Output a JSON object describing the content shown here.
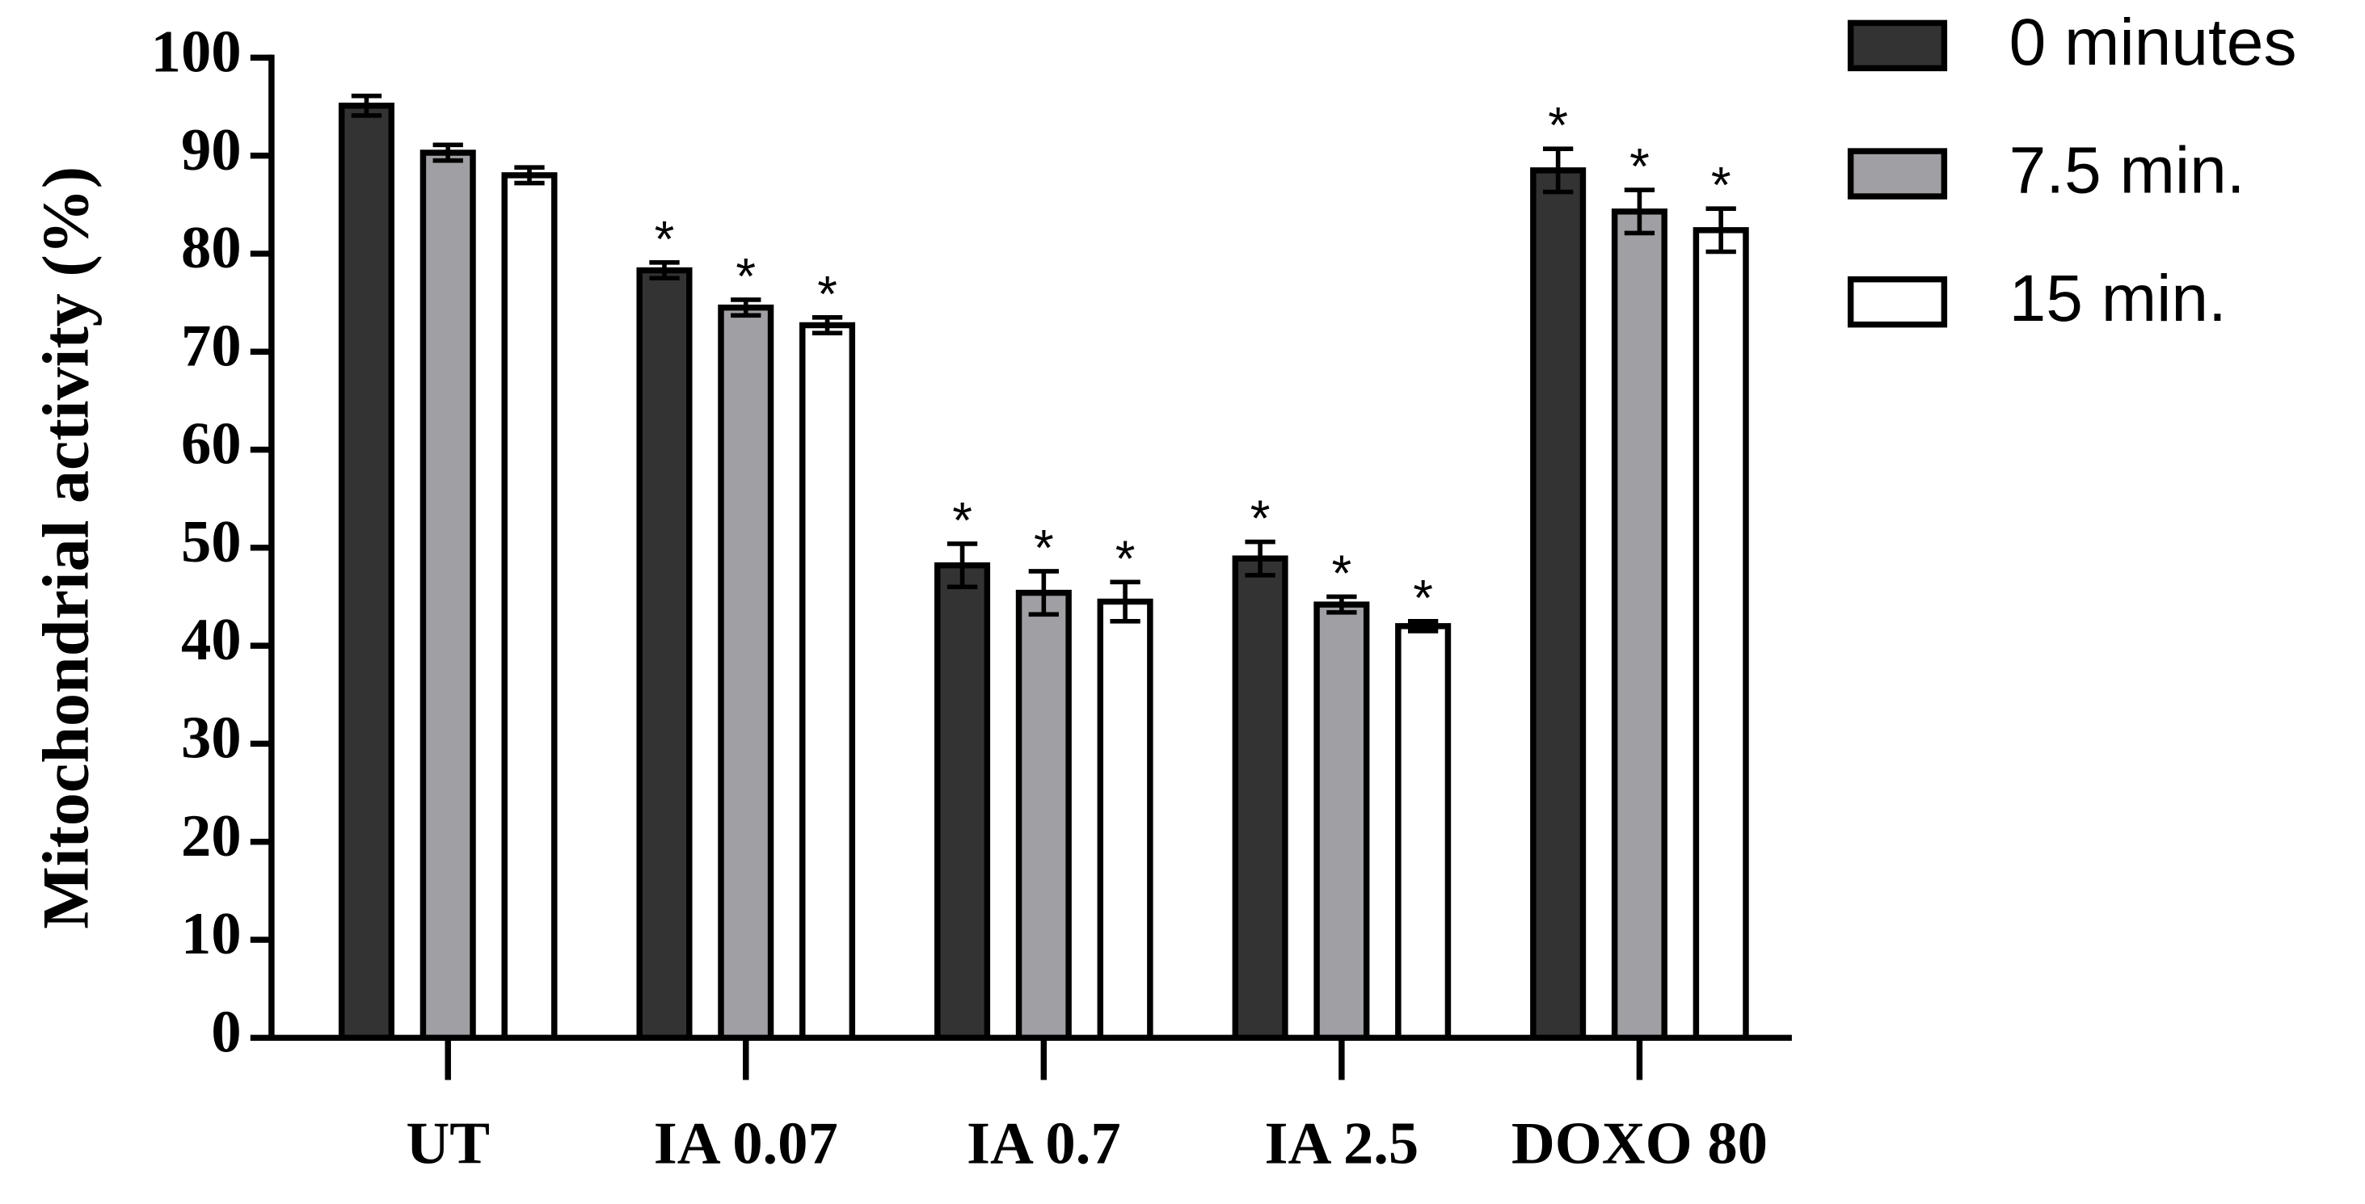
{
  "chart_data": {
    "type": "bar",
    "y_label": "Mitochondrial activity (%)",
    "categories": [
      "UT",
      "IA 0.07",
      "IA 0.7",
      "IA 2.5",
      "DOXO 80"
    ],
    "series": [
      {
        "name": "0 minutes",
        "color": "#333333",
        "values": [
          95.1,
          78.3,
          48.2,
          48.9,
          88.5
        ],
        "errors": [
          1.0,
          0.8,
          2.2,
          1.7,
          2.2
        ],
        "significance": [
          null,
          "*",
          "*",
          "*",
          "*"
        ]
      },
      {
        "name": "7.5 min.",
        "color": "#a0a0a4",
        "values": [
          90.3,
          74.5,
          45.4,
          44.2,
          84.3
        ],
        "errors": [
          0.8,
          0.8,
          2.2,
          0.8,
          2.2
        ],
        "significance": [
          null,
          "*",
          "*",
          "*",
          "*"
        ]
      },
      {
        "name": "15 min.",
        "color": "#ffffff",
        "values": [
          88.0,
          72.7,
          44.5,
          42.0,
          82.4
        ],
        "errors": [
          0.8,
          0.8,
          2.0,
          0.5,
          2.2
        ],
        "significance": [
          null,
          "*",
          "*",
          "*",
          "*"
        ]
      }
    ],
    "ylim": [
      0,
      100
    ],
    "yticks": [
      0,
      10,
      20,
      30,
      40,
      50,
      60,
      70,
      80,
      90,
      100
    ],
    "grid": false,
    "legend": "right"
  }
}
